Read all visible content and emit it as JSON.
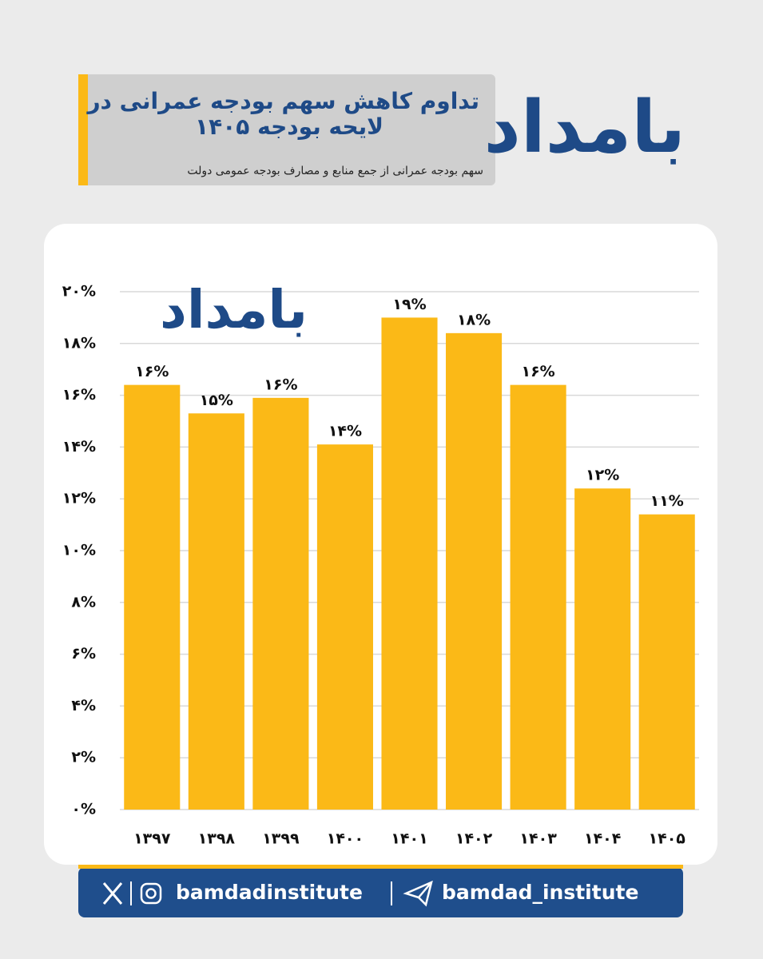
{
  "header": {
    "title_lines": [
      "تداوم کاهش سهم بودجه عمرانی در",
      "لایحه بودجه ۱۴۰۵"
    ],
    "subtitle": "سهم بودجه عمرانی از جمع منابع و مصارف بودجه عمومی دولت",
    "logo": "بامداد"
  },
  "chart_data": {
    "type": "bar",
    "logo": "بامداد",
    "categories": [
      "۱۳۹۷",
      "۱۳۹۸",
      "۱۳۹۹",
      "۱۴۰۰",
      "۱۴۰۱",
      "۱۴۰۲",
      "۱۴۰۳",
      "۱۴۰۴",
      "۱۴۰۵"
    ],
    "values": [
      16.4,
      15.3,
      15.9,
      14.1,
      19.0,
      18.4,
      16.4,
      12.4,
      11.4
    ],
    "value_labels": [
      "۱۶%",
      "۱۵%",
      "۱۶%",
      "۱۴%",
      "۱۹%",
      "۱۸%",
      "۱۶%",
      "۱۲%",
      "۱۱%"
    ],
    "color": "#fbb917",
    "ylim": [
      0,
      20
    ],
    "yticks": [
      {
        "value": 0,
        "label": "۰%"
      },
      {
        "value": 2,
        "label": "۲%"
      },
      {
        "value": 4,
        "label": "۴%"
      },
      {
        "value": 6,
        "label": "۶%"
      },
      {
        "value": 8,
        "label": "۸%"
      },
      {
        "value": 10,
        "label": "۱۰%"
      },
      {
        "value": 12,
        "label": "۱۲%"
      },
      {
        "value": 14,
        "label": "۱۴%"
      },
      {
        "value": 16,
        "label": "۱۶%"
      },
      {
        "value": 18,
        "label": "۱۸%"
      },
      {
        "value": 20,
        "label": "۲۰%"
      }
    ],
    "grid": true
  },
  "footer": {
    "handle_1": "bamdadinstitute",
    "handle_2": "bamdad_institute"
  }
}
